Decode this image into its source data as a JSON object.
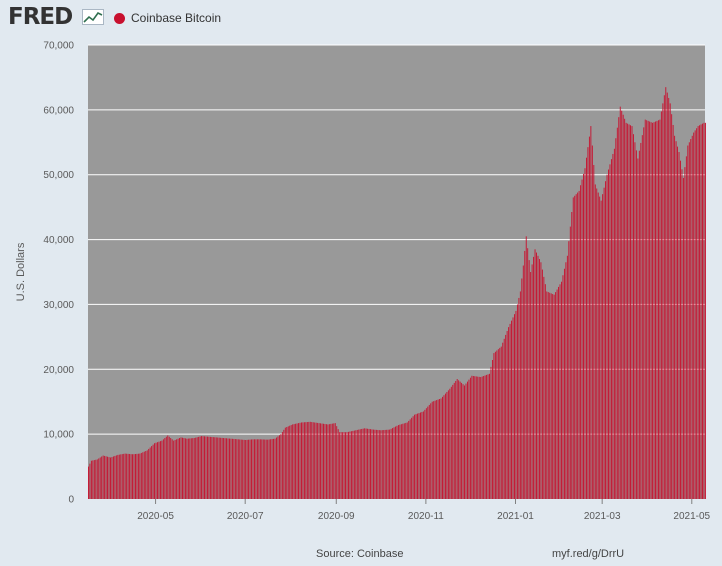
{
  "header": {
    "logo_text": "FRED",
    "legend_label": "Coinbase Bitcoin"
  },
  "footer": {
    "source": "Source: Coinbase",
    "link": "myf.red/g/DrrU"
  },
  "colors": {
    "bar": "#c8102e",
    "plot_background": "#999999",
    "page_background": "#e1e9f0",
    "gridline": "#ffffff"
  },
  "chart_data": {
    "type": "bar",
    "title": "",
    "xlabel": "",
    "ylabel": "U.S. Dollars",
    "series": [
      {
        "name": "Coinbase Bitcoin"
      }
    ],
    "ylim": [
      0,
      70000
    ],
    "yticks": [
      0,
      10000,
      20000,
      30000,
      40000,
      50000,
      60000,
      70000
    ],
    "ytick_labels": [
      "0",
      "10,000",
      "20,000",
      "30,000",
      "40,000",
      "50,000",
      "60,000",
      "70,000"
    ],
    "xlim": [
      "2020-03-16",
      "2021-05-10"
    ],
    "xticks": [
      "2020-05-01",
      "2020-07-01",
      "2020-09-01",
      "2020-11-01",
      "2021-01-01",
      "2021-03-01",
      "2021-05-01"
    ],
    "xtick_labels": [
      "2020-05",
      "2020-07",
      "2020-09",
      "2020-11",
      "2021-01",
      "2021-03",
      "2021-05"
    ],
    "grid": true,
    "legend_position": "top-left",
    "data": [
      [
        "2020-03-16",
        5000
      ],
      [
        "2020-03-18",
        5900
      ],
      [
        "2020-03-22",
        6100
      ],
      [
        "2020-03-26",
        6700
      ],
      [
        "2020-03-31",
        6400
      ],
      [
        "2020-04-05",
        6800
      ],
      [
        "2020-04-10",
        7000
      ],
      [
        "2020-04-15",
        6900
      ],
      [
        "2020-04-20",
        7000
      ],
      [
        "2020-04-25",
        7500
      ],
      [
        "2020-04-30",
        8600
      ],
      [
        "2020-05-05",
        9000
      ],
      [
        "2020-05-09",
        9800
      ],
      [
        "2020-05-13",
        9000
      ],
      [
        "2020-05-18",
        9500
      ],
      [
        "2020-05-22",
        9300
      ],
      [
        "2020-05-27",
        9400
      ],
      [
        "2020-06-01",
        9700
      ],
      [
        "2020-06-06",
        9600
      ],
      [
        "2020-06-11",
        9500
      ],
      [
        "2020-06-16",
        9400
      ],
      [
        "2020-06-21",
        9300
      ],
      [
        "2020-06-26",
        9200
      ],
      [
        "2020-07-01",
        9100
      ],
      [
        "2020-07-06",
        9200
      ],
      [
        "2020-07-11",
        9200
      ],
      [
        "2020-07-16",
        9150
      ],
      [
        "2020-07-21",
        9300
      ],
      [
        "2020-07-25",
        10000
      ],
      [
        "2020-07-28",
        11000
      ],
      [
        "2020-08-02",
        11500
      ],
      [
        "2020-08-08",
        11800
      ],
      [
        "2020-08-14",
        11900
      ],
      [
        "2020-08-20",
        11700
      ],
      [
        "2020-08-26",
        11500
      ],
      [
        "2020-08-31",
        11700
      ],
      [
        "2020-09-03",
        10300
      ],
      [
        "2020-09-08",
        10300
      ],
      [
        "2020-09-14",
        10600
      ],
      [
        "2020-09-20",
        10900
      ],
      [
        "2020-09-26",
        10700
      ],
      [
        "2020-10-01",
        10600
      ],
      [
        "2020-10-07",
        10700
      ],
      [
        "2020-10-13",
        11400
      ],
      [
        "2020-10-19",
        11800
      ],
      [
        "2020-10-24",
        13000
      ],
      [
        "2020-10-30",
        13500
      ],
      [
        "2020-11-05",
        15000
      ],
      [
        "2020-11-11",
        15500
      ],
      [
        "2020-11-17",
        17000
      ],
      [
        "2020-11-22",
        18500
      ],
      [
        "2020-11-27",
        17500
      ],
      [
        "2020-12-02",
        19000
      ],
      [
        "2020-12-08",
        18800
      ],
      [
        "2020-12-14",
        19300
      ],
      [
        "2020-12-17",
        22500
      ],
      [
        "2020-12-22",
        23500
      ],
      [
        "2020-12-27",
        26500
      ],
      [
        "2021-01-01",
        29000
      ],
      [
        "2021-01-04",
        32000
      ],
      [
        "2021-01-06",
        36000
      ],
      [
        "2021-01-08",
        40500
      ],
      [
        "2021-01-11",
        35000
      ],
      [
        "2021-01-14",
        38500
      ],
      [
        "2021-01-18",
        36500
      ],
      [
        "2021-01-22",
        32000
      ],
      [
        "2021-01-27",
        31500
      ],
      [
        "2021-02-01",
        33500
      ],
      [
        "2021-02-05",
        37500
      ],
      [
        "2021-02-09",
        46500
      ],
      [
        "2021-02-13",
        47500
      ],
      [
        "2021-02-17",
        51000
      ],
      [
        "2021-02-21",
        57500
      ],
      [
        "2021-02-24",
        48500
      ],
      [
        "2021-02-28",
        46000
      ],
      [
        "2021-03-04",
        50000
      ],
      [
        "2021-03-09",
        54000
      ],
      [
        "2021-03-13",
        60500
      ],
      [
        "2021-03-17",
        58000
      ],
      [
        "2021-03-21",
        57500
      ],
      [
        "2021-03-25",
        52500
      ],
      [
        "2021-03-30",
        58500
      ],
      [
        "2021-04-04",
        58000
      ],
      [
        "2021-04-09",
        58500
      ],
      [
        "2021-04-13",
        63500
      ],
      [
        "2021-04-16",
        61000
      ],
      [
        "2021-04-19",
        56000
      ],
      [
        "2021-04-22",
        53500
      ],
      [
        "2021-04-25",
        49500
      ],
      [
        "2021-04-28",
        54500
      ],
      [
        "2021-05-02",
        56500
      ],
      [
        "2021-05-05",
        57500
      ],
      [
        "2021-05-09",
        58000
      ]
    ]
  }
}
